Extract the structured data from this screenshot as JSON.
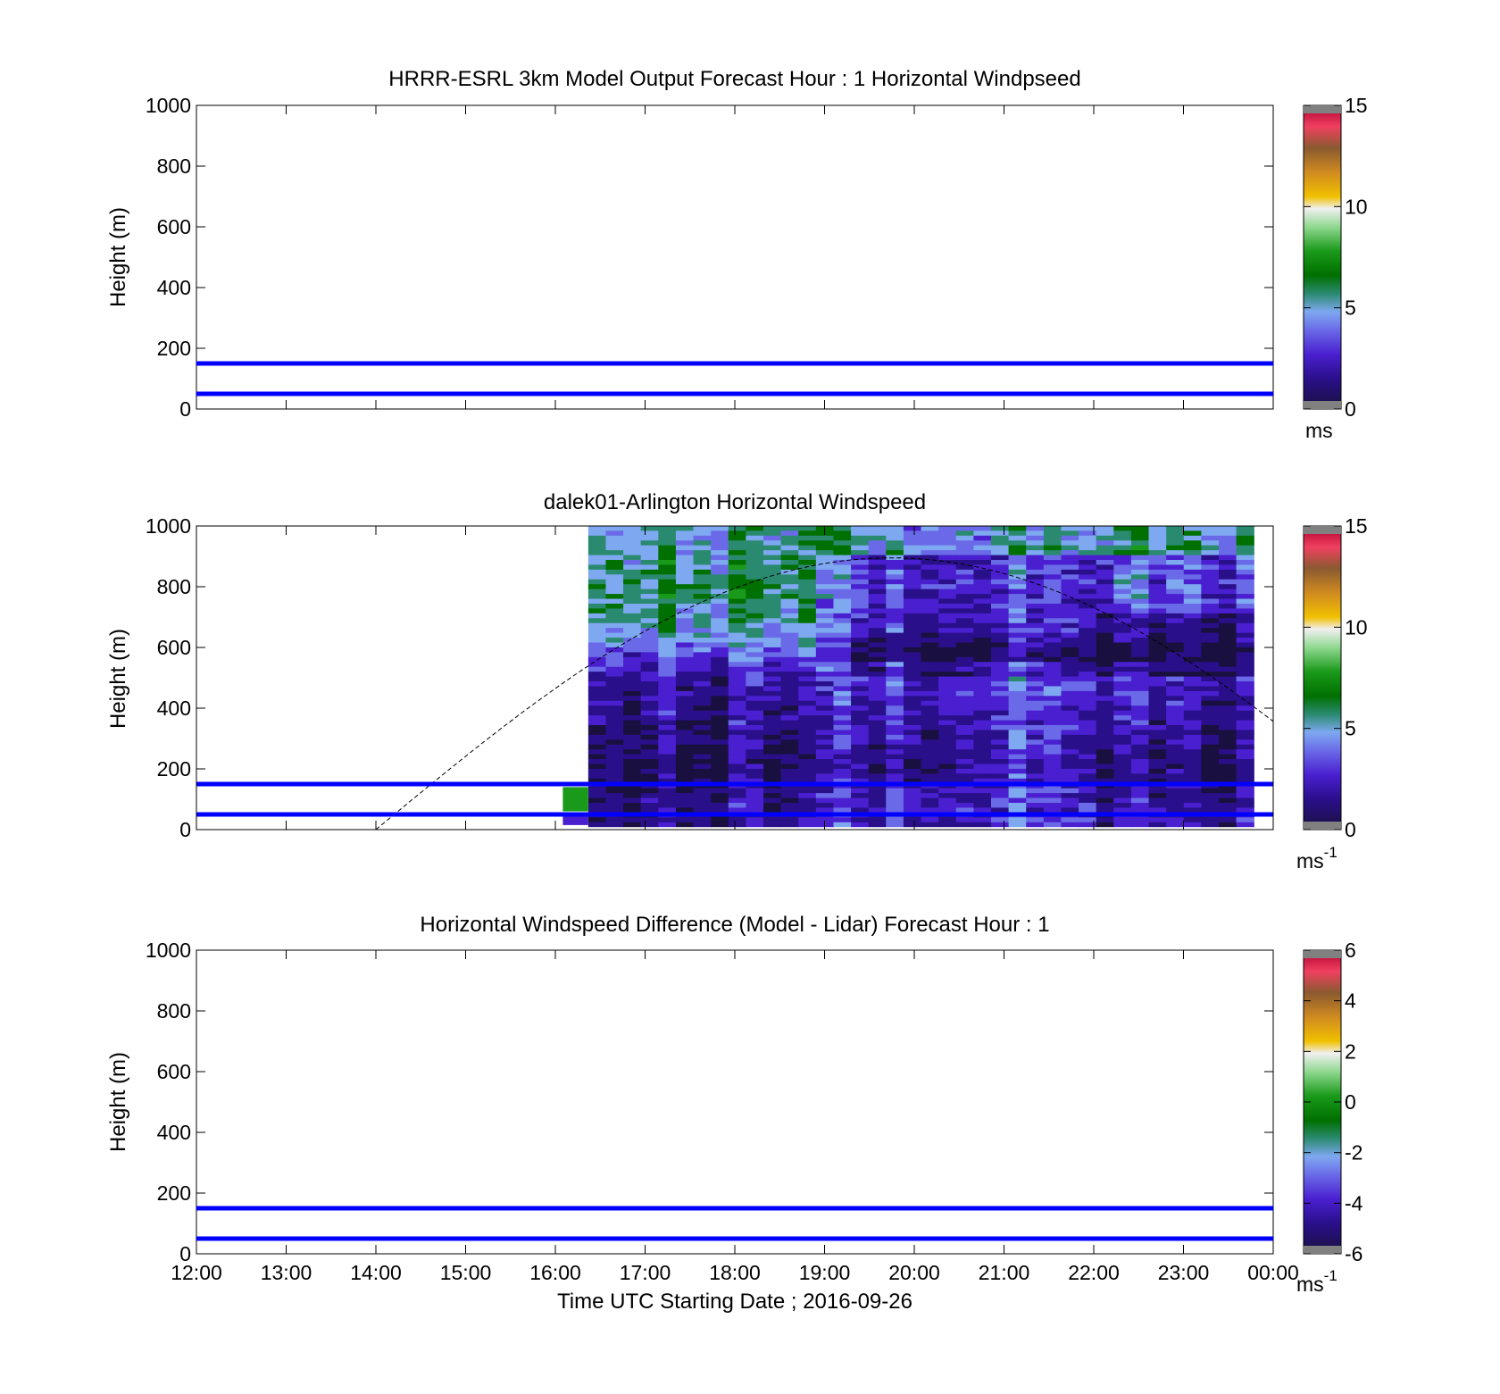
{
  "chart_data": [
    {
      "type": "heatmap",
      "title": "HRRR-ESRL 3km Model Output   Forecast Hour : 1 Horizontal Windpseed",
      "ylabel": "Height (m)",
      "ylim": [
        0,
        1000
      ],
      "yticks": [
        "0",
        "200",
        "400",
        "600",
        "800",
        "1000"
      ],
      "xlim": [
        "12:00",
        "00:00"
      ],
      "show_x_tick_labels": false,
      "reference_lines_m": [
        50,
        150
      ],
      "colorbar": {
        "range": [
          0,
          15
        ],
        "ticks": [
          "0",
          "5",
          "10",
          "15"
        ],
        "unit": "ms"
      },
      "data": []
    },
    {
      "type": "heatmap",
      "title": "dalek01-Arlington  Horizontal Windspeed",
      "ylabel": "Height (m)",
      "ylim": [
        0,
        1000
      ],
      "yticks": [
        "0",
        "200",
        "400",
        "600",
        "800",
        "1000"
      ],
      "xlim": [
        "12:00",
        "00:00"
      ],
      "show_x_tick_labels": false,
      "reference_lines_m": [
        50,
        150
      ],
      "colorbar": {
        "range": [
          0,
          15
        ],
        "ticks": [
          "0",
          "5",
          "10",
          "15"
        ],
        "unit": "ms",
        "unit_exp": "-1"
      },
      "data_start": "16:22",
      "data_end": "23:47",
      "data_profile": [
        {
          "height_m": 950,
          "speed": 4.5
        },
        {
          "height_m": 800,
          "speed": 5.0
        },
        {
          "height_m": 650,
          "speed": 4.5
        },
        {
          "height_m": 500,
          "speed": 2.5
        },
        {
          "height_m": 350,
          "speed": 2.0
        },
        {
          "height_m": 200,
          "speed": 1.5
        },
        {
          "height_m": 100,
          "speed": 2.0
        }
      ],
      "solar_curve": {
        "start": "14:00",
        "peak": "19:45",
        "peak_height_m": 895,
        "end_height_m": 410
      }
    },
    {
      "type": "heatmap",
      "title": "Horizontal Windspeed Difference (Model - Lidar) Forecast Hour : 1",
      "ylabel": "Height (m)",
      "xlabel": "Time UTC  Starting Date ; 2016-09-26",
      "ylim": [
        0,
        1000
      ],
      "yticks": [
        "0",
        "200",
        "400",
        "600",
        "800",
        "1000"
      ],
      "xlim": [
        "12:00",
        "00:00"
      ],
      "show_x_tick_labels": true,
      "reference_lines_m": [
        50,
        150
      ],
      "colorbar": {
        "range": [
          -6,
          6
        ],
        "ticks": [
          "-6",
          "-4",
          "-2",
          "0",
          "2",
          "4",
          "6"
        ],
        "unit": "ms",
        "unit_exp": "-1"
      },
      "data": []
    }
  ],
  "x_tick_labels": [
    "12:00",
    "13:00",
    "14:00",
    "15:00",
    "16:00",
    "17:00",
    "18:00",
    "19:00",
    "20:00",
    "21:00",
    "22:00",
    "23:00",
    "00:00"
  ],
  "colors": {
    "reference_line": "#0000ff",
    "colormap": [
      "#808080",
      "#1a1040",
      "#2a0f8a",
      "#4a1fd0",
      "#6a6ae8",
      "#7ea8f0",
      "#2a8a70",
      "#007000",
      "#1a9a1a",
      "#90d890",
      "#f0f0f0",
      "#f0c000",
      "#d08a20",
      "#8a5a30",
      "#f04060",
      "#b00030",
      "#808080"
    ]
  }
}
